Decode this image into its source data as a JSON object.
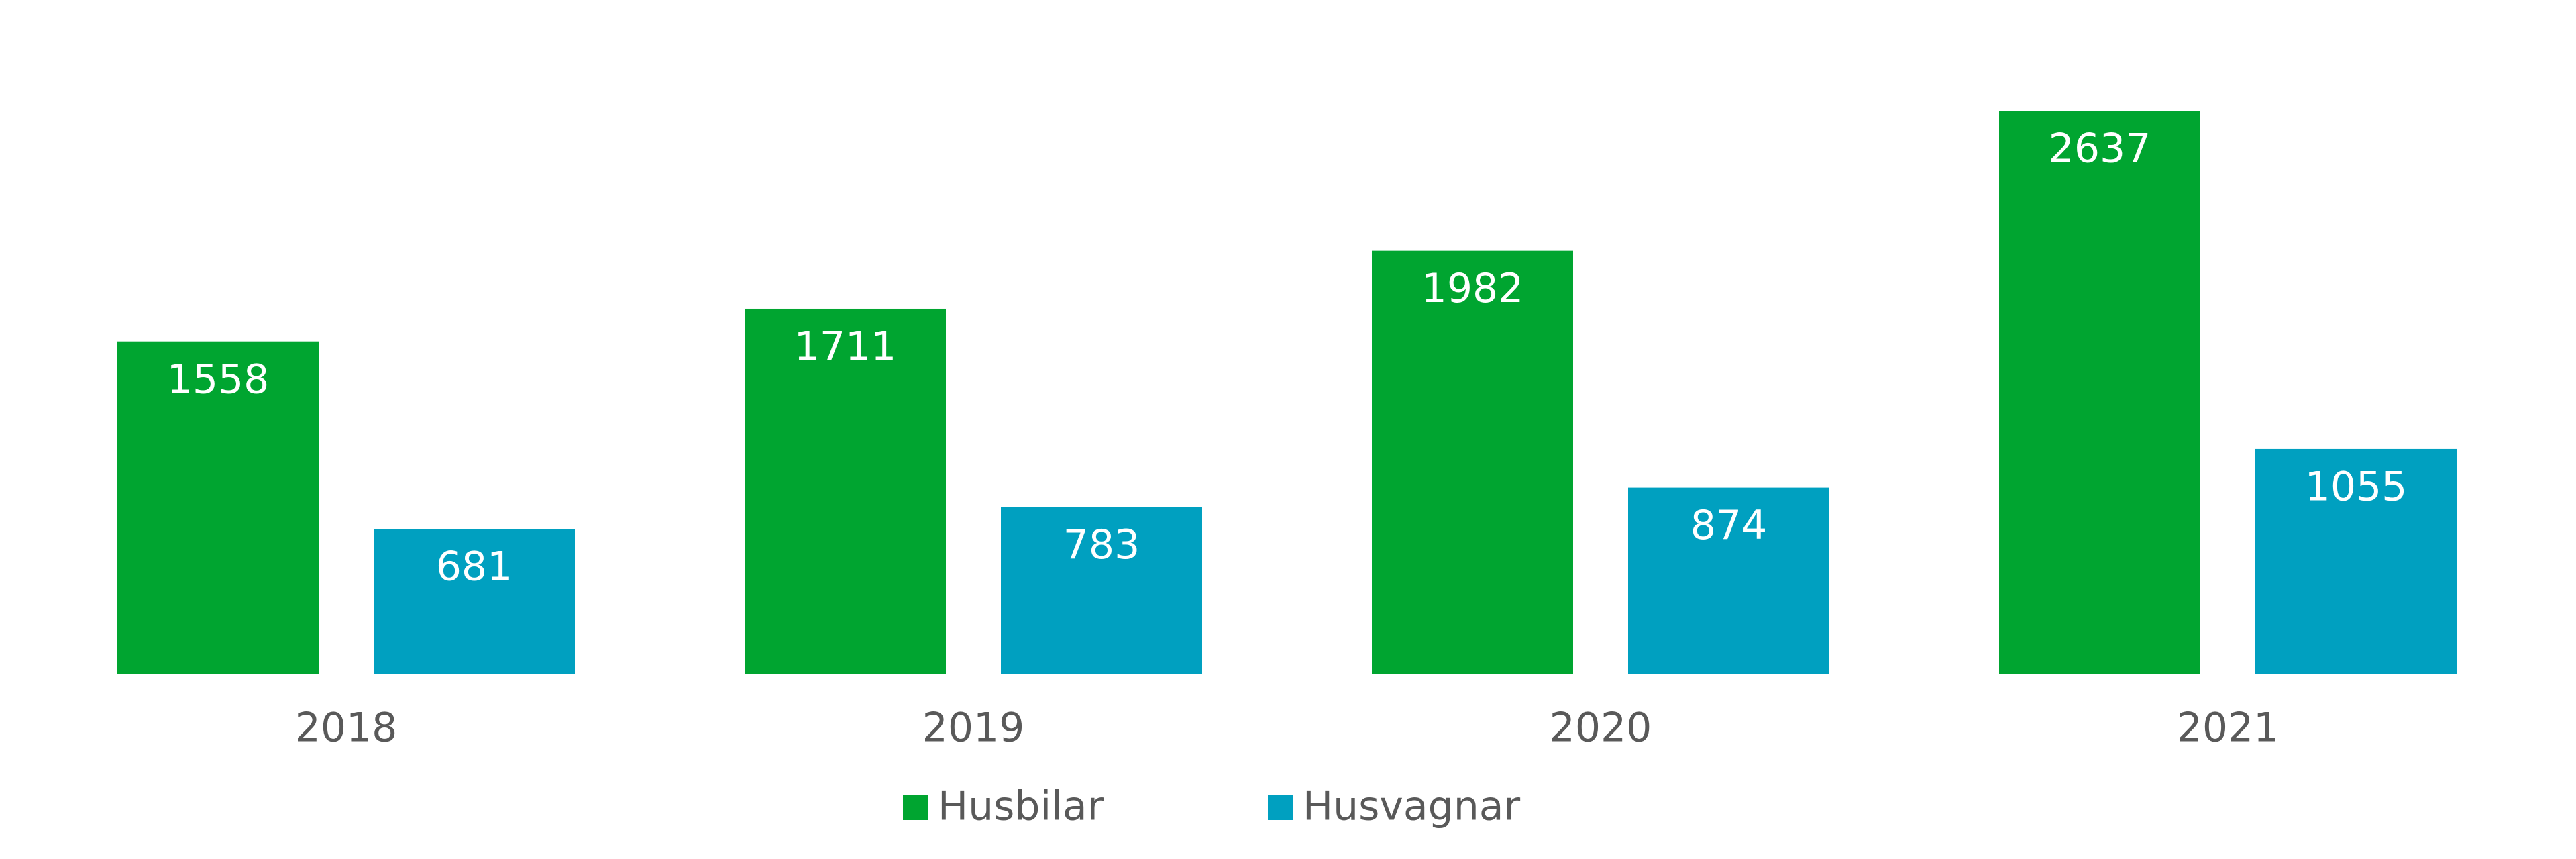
{
  "chart_data": {
    "type": "bar",
    "title": "",
    "xlabel": "",
    "ylabel": "",
    "categories": [
      "2018",
      "2019",
      "2020",
      "2021"
    ],
    "series": [
      {
        "name": "Husbilar",
        "color": "#00A530",
        "values": [
          1558,
          1711,
          1982,
          2637
        ]
      },
      {
        "name": "Husvagnar",
        "color": "#00A0C0",
        "values": [
          681,
          783,
          874,
          1055
        ]
      }
    ],
    "ylim": [
      0,
      3000
    ],
    "grid": false,
    "legend_position": "bottom-center",
    "data_labels": true
  }
}
